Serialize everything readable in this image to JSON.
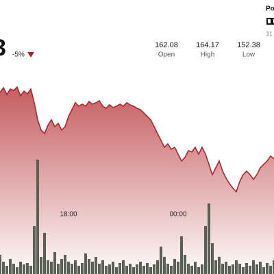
{
  "header": {
    "price": "3",
    "change": "-5%",
    "stats": [
      {
        "value": "162.08",
        "label": "Open"
      },
      {
        "value": "164.17",
        "label": "High"
      },
      {
        "value": "152.38",
        "label": "Low"
      }
    ],
    "side_title": "Po",
    "side_note": "31"
  },
  "chart_data": {
    "type": "line",
    "categories": [
      null,
      null,
      null,
      null,
      null,
      null,
      null,
      null,
      null,
      null,
      null,
      null,
      null,
      null,
      null,
      null,
      null,
      null,
      null,
      null,
      "18:00",
      null,
      null,
      null,
      null,
      null,
      null,
      null,
      null,
      null,
      null,
      null,
      null,
      null,
      null,
      null,
      null,
      null,
      null,
      null,
      null,
      null,
      null,
      null,
      null,
      null,
      null,
      null,
      null,
      null,
      null,
      null,
      "00:00",
      null,
      null,
      null,
      null,
      null,
      null,
      null,
      null,
      null,
      null,
      null,
      null,
      null,
      null,
      null,
      null,
      null,
      null,
      null,
      null,
      null,
      null,
      null,
      null,
      null,
      null,
      null,
      null
    ],
    "values": [
      163.37,
      163.9,
      163.15,
      163.75,
      163.6,
      163.97,
      163.0,
      163.52,
      163.22,
      163.75,
      162.25,
      160.37,
      159.24,
      158.87,
      159.77,
      160.37,
      159.62,
      159.99,
      159.24,
      159.62,
      160.74,
      161.49,
      162.25,
      161.87,
      162.09,
      161.87,
      162.39,
      162.09,
      162.25,
      162.47,
      161.87,
      161.64,
      162.02,
      161.72,
      161.87,
      162.09,
      161.87,
      162.25,
      162.02,
      161.87,
      161.64,
      161.49,
      161.12,
      160.74,
      160.37,
      159.62,
      158.87,
      158.11,
      157.36,
      157.74,
      157.14,
      157.36,
      156.61,
      155.86,
      156.24,
      156.99,
      156.84,
      157.36,
      156.61,
      157.36,
      156.61,
      155.49,
      154.36,
      155.11,
      155.86,
      154.74,
      153.98,
      153.38,
      152.86,
      152.48,
      153.61,
      154.36,
      154.74,
      154.36,
      153.83,
      154.36,
      155.11,
      155.49,
      155.86,
      156.39,
      156.09
    ],
    "color": "#b0252a",
    "ylim": [
      150,
      166
    ],
    "volume": {
      "color": "#5b6055",
      "ylim": [
        0,
        170
      ],
      "values": [
        28,
        18,
        12,
        22,
        15,
        10,
        18,
        14,
        16,
        12,
        70,
        167,
        25,
        60,
        20,
        18,
        32,
        15,
        22,
        28,
        18,
        15,
        20,
        12,
        16,
        30,
        22,
        18,
        25,
        15,
        20,
        12,
        14,
        18,
        10,
        16,
        20,
        12,
        15,
        10,
        14,
        18,
        12,
        16,
        10,
        14,
        20,
        40,
        25,
        15,
        12,
        22,
        18,
        55,
        28,
        15,
        12,
        18,
        10,
        14,
        70,
        103,
        45,
        20,
        25,
        15,
        18,
        12,
        14,
        20,
        15,
        10,
        16,
        12,
        20,
        14,
        18,
        10,
        16,
        12,
        20
      ]
    }
  }
}
